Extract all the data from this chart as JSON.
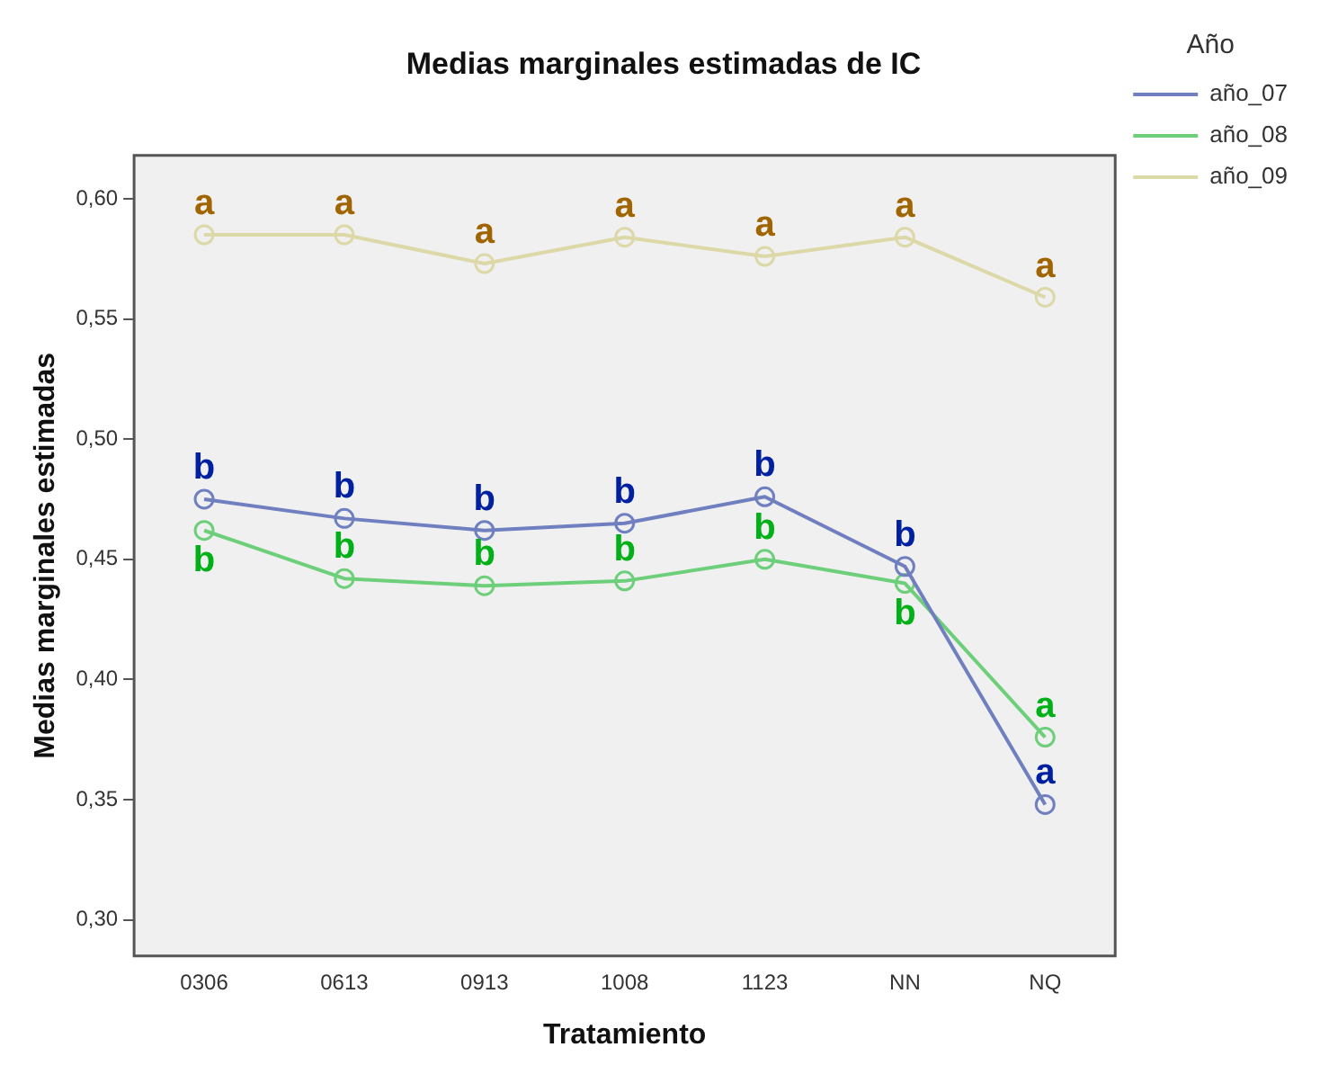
{
  "chart_data": {
    "type": "line",
    "title": "Medias marginales estimadas de IC",
    "xlabel": "Tratamiento",
    "ylabel": "Medias marginales estimadas",
    "legend_title": "Año",
    "categories": [
      "0306",
      "0613",
      "0913",
      "1008",
      "1123",
      "NN",
      "NQ"
    ],
    "series": [
      {
        "name": "año_07",
        "color": "#6f7fbf",
        "values": [
          0.475,
          0.467,
          0.462,
          0.465,
          0.476,
          0.447,
          0.348
        ],
        "value_labels": [
          "b",
          "b",
          "b",
          "b",
          "b",
          "b",
          "a"
        ]
      },
      {
        "name": "año_08",
        "color": "#6dcf7a",
        "values": [
          0.462,
          0.442,
          0.439,
          0.441,
          0.45,
          0.44,
          0.376
        ],
        "value_labels": [
          "b",
          "b",
          "b",
          "b",
          "b",
          "b",
          "a"
        ]
      },
      {
        "name": "año_09",
        "color": "#dcd8a8",
        "values": [
          0.585,
          0.585,
          0.573,
          0.584,
          0.576,
          0.584,
          0.559
        ],
        "value_labels": [
          "a",
          "a",
          "a",
          "a",
          "a",
          "a",
          "a"
        ]
      }
    ],
    "ylim": [
      0.285,
      0.618
    ],
    "yticks": [
      {
        "value": 0.3,
        "label": "0,30"
      },
      {
        "value": 0.35,
        "label": "0,35"
      },
      {
        "value": 0.4,
        "label": "0,40"
      },
      {
        "value": 0.45,
        "label": "0,45"
      },
      {
        "value": 0.5,
        "label": "0,50"
      },
      {
        "value": 0.55,
        "label": "0,55"
      },
      {
        "value": 0.6,
        "label": "0,60"
      }
    ],
    "grid": false,
    "legend": "right",
    "marker": "circle",
    "line_style": "solid"
  }
}
